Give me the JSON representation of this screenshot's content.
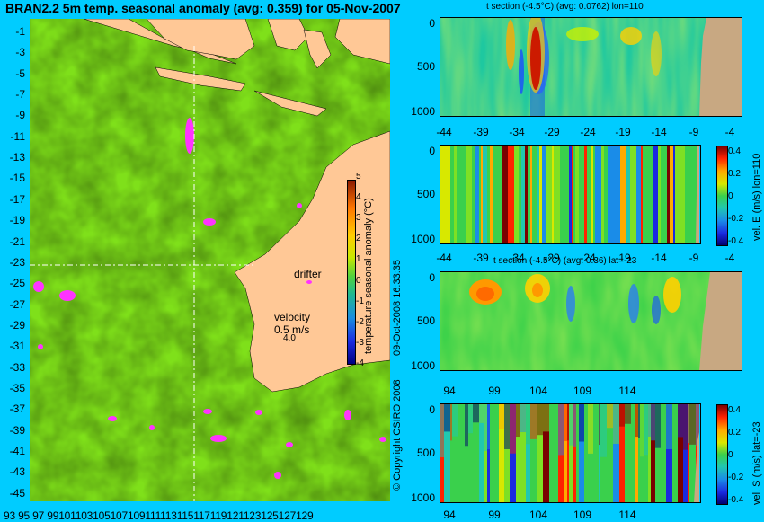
{
  "map": {
    "title": "BRAN2.2 5m temp. seasonal anomaly (avg: 0.359) for 05-Nov-2007",
    "lat_labels": [
      "-1",
      "-3",
      "-5",
      "-7",
      "-9",
      "-11",
      "-13",
      "-15",
      "-17",
      "-19",
      "-21",
      "-23",
      "-25",
      "-27",
      "-29",
      "-31",
      "-33",
      "-35",
      "-37",
      "-39",
      "-41",
      "-43",
      "-45"
    ],
    "lon_labels": [
      "93",
      "95",
      "97",
      "99",
      "101",
      "103",
      "105",
      "107",
      "109",
      "111",
      "113",
      "115",
      "117",
      "119",
      "121",
      "123",
      "125",
      "127",
      "129"
    ],
    "lon_labels_printed": "93 95 97 99101103105107109111113115117119121123125127129",
    "colorbar_ticks": [
      "5",
      "4",
      "3",
      "2",
      "1",
      "0",
      "-1",
      "-2",
      "-3",
      "-4"
    ],
    "colorbar_label": "temperature seasonal anomaly (°C)",
    "drifter_label": "drifter",
    "velocity_label": "velocity",
    "velocity_value": "0.5 m/s",
    "velocity_number": "4.0",
    "copyright": "© Copyright CSIRO 2008",
    "timestamp": "09-Oct-2008 16:33:35"
  },
  "panels": {
    "p1": {
      "title": "t section (-4.5°C) (avg: 0.0762) lon=110",
      "y_ticks": [
        "0",
        "500",
        "1000"
      ],
      "x_ticks": [
        "-44",
        "-39",
        "-34",
        "-29",
        "-24",
        "-19",
        "-14",
        "-9",
        "-4"
      ]
    },
    "p2": {
      "y_ticks": [
        "0",
        "500",
        "1000"
      ],
      "x_ticks": [
        "-44",
        "-39",
        "-34",
        "-29",
        "-24",
        "-19",
        "-14",
        "-9",
        "-4"
      ],
      "colorbar_ticks": [
        "0.4",
        "0.2",
        "0",
        "-0.2",
        "-0.4"
      ],
      "colorbar_label": "vel. E (m/s) lon=110"
    },
    "p3": {
      "title": "t section (-4.5°C) (avg: 0.36) lat=-23",
      "y_ticks": [
        "0",
        "500",
        "1000"
      ],
      "x_ticks": [
        "94",
        "99",
        "104",
        "109",
        "114"
      ]
    },
    "p4": {
      "y_ticks": [
        "0",
        "500",
        "1000"
      ],
      "x_ticks": [
        "94",
        "99",
        "104",
        "109",
        "114"
      ],
      "colorbar_ticks": [
        "0.4",
        "0.2",
        "0",
        "-0.2",
        "-0.4"
      ],
      "colorbar_label": "vel. S (m/s) lat=-23"
    }
  }
}
